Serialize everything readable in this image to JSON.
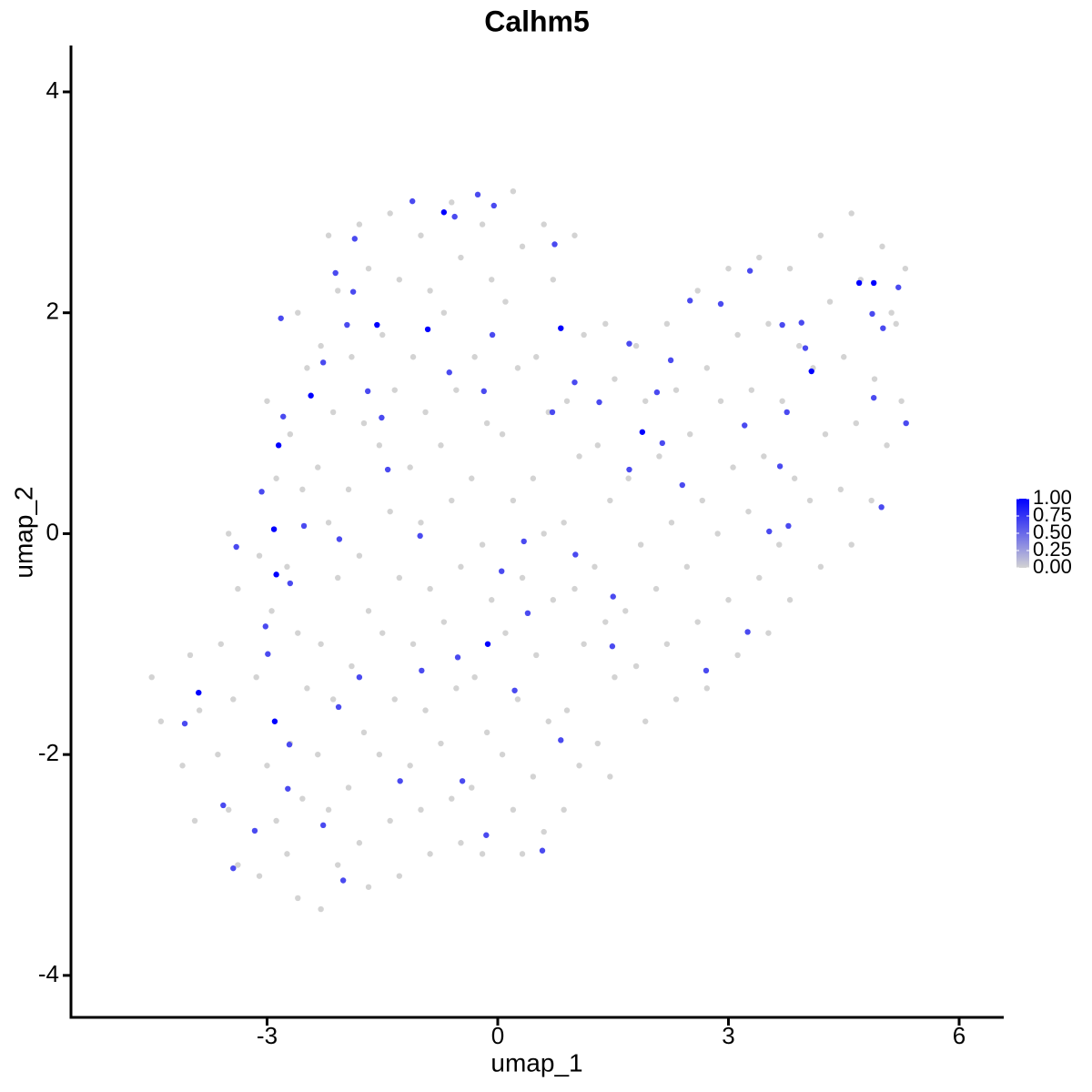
{
  "chart_data": {
    "type": "scatter",
    "title": "Calhm5",
    "x_label": "umap_1",
    "y_label": "umap_2",
    "xlim": [
      -5.55,
      6.58
    ],
    "ylim": [
      -4.38,
      4.42
    ],
    "xticks": [
      -3,
      0,
      3,
      6
    ],
    "yticks": [
      -4,
      -2,
      0,
      2,
      4
    ],
    "grid": false,
    "low_color": "#d3d3d3",
    "high_color": "#0000ff",
    "colorlim": [
      0,
      1
    ],
    "colorticks": [
      {
        "value": 0,
        "label": "0.00"
      },
      {
        "value": 0.25,
        "label": "0.25"
      },
      {
        "value": 0.5,
        "label": "0.50"
      },
      {
        "value": 0.75,
        "label": "0.75"
      },
      {
        "value": 1,
        "label": "1.00"
      }
    ],
    "legend_position": "right",
    "x": [
      -4.5,
      -4.38,
      -4.0,
      -3.88,
      -4.1,
      -3.94,
      -3.5,
      -3.38,
      -3.6,
      -3.44,
      -3.64,
      -3.5,
      -3.38,
      -3.0,
      -2.88,
      -3.1,
      -2.94,
      -3.14,
      -3.0,
      -2.88,
      -3.1,
      -2.6,
      -2.48,
      -2.7,
      -2.54,
      -2.74,
      -2.6,
      -2.48,
      -2.7,
      -2.54,
      -2.74,
      -2.6,
      -2.2,
      -2.08,
      -2.3,
      -2.14,
      -2.34,
      -2.2,
      -2.08,
      -2.3,
      -2.14,
      -2.34,
      -2.2,
      -2.08,
      -2.3,
      -1.8,
      -1.68,
      -1.9,
      -1.74,
      -1.94,
      -1.8,
      -1.68,
      -1.9,
      -1.74,
      -1.94,
      -1.8,
      -1.68,
      -1.4,
      -1.28,
      -1.5,
      -1.34,
      -1.54,
      -1.4,
      -1.28,
      -1.5,
      -1.34,
      -1.54,
      -1.4,
      -1.28,
      -1.0,
      -0.88,
      -1.1,
      -0.94,
      -1.14,
      -1.0,
      -0.88,
      -1.1,
      -0.94,
      -1.14,
      -1.0,
      -0.88,
      -0.6,
      -0.48,
      -0.7,
      -0.54,
      -0.74,
      -0.6,
      -0.48,
      -0.7,
      -0.54,
      -0.74,
      -0.6,
      -0.48,
      -0.2,
      -0.08,
      -0.3,
      -0.14,
      -0.34,
      -0.2,
      -0.08,
      -0.3,
      -0.14,
      -0.34,
      -0.2,
      0.2,
      0.32,
      0.1,
      0.26,
      0.06,
      0.2,
      0.32,
      0.1,
      0.26,
      0.06,
      0.2,
      0.32,
      0.6,
      0.72,
      0.5,
      0.66,
      0.46,
      0.6,
      0.72,
      0.5,
      0.66,
      0.46,
      0.6,
      1.0,
      1.12,
      0.9,
      1.06,
      0.86,
      1.0,
      1.12,
      0.9,
      1.06,
      0.86,
      1.4,
      1.52,
      1.3,
      1.46,
      1.26,
      1.4,
      1.52,
      1.3,
      1.46,
      1.8,
      1.92,
      1.7,
      1.86,
      1.66,
      1.8,
      1.92,
      2.2,
      2.32,
      2.1,
      2.26,
      2.06,
      2.2,
      2.32,
      2.6,
      2.72,
      2.5,
      2.66,
      2.46,
      2.6,
      2.72,
      3.0,
      3.12,
      2.9,
      3.06,
      2.86,
      3.0,
      3.12,
      3.4,
      3.52,
      3.3,
      3.46,
      3.26,
      3.4,
      3.52,
      3.8,
      3.92,
      3.7,
      3.86,
      3.66,
      3.8,
      4.2,
      4.32,
      4.1,
      4.26,
      4.06,
      4.2,
      4.6,
      4.72,
      4.5,
      4.66,
      4.46,
      4.6,
      5.0,
      5.12,
      4.9,
      5.06,
      4.86,
      5.3,
      5.18,
      5.25,
      -1.11,
      -0.26,
      -1.86,
      -2.11,
      -1.88,
      -2.82,
      -1.96,
      -2.27,
      -1.69,
      -1.51,
      -2.79,
      -3.07,
      -2.52,
      -2.06,
      -3.4,
      -2.7,
      -3.02,
      -2.99,
      -1.8,
      -2.07,
      -2.71,
      -4.07,
      -3.57,
      -3.44,
      -2.01,
      -2.27,
      -2.73,
      -3.16,
      -1.27,
      -0.46,
      -0.15,
      0.58,
      0.82,
      0.22,
      -0.52,
      0.39,
      0.05,
      0.34,
      1.01,
      1.5,
      1.49,
      -0.99,
      -1.01,
      -1.43,
      -0.07,
      -0.18,
      -0.63,
      1.0,
      1.32,
      0.71,
      1.71,
      2.14,
      2.4,
      2.07,
      2.25,
      1.71,
      2.5,
      2.9,
      3.28,
      3.76,
      3.21,
      3.67,
      3.78,
      3.53,
      3.25,
      2.71,
      4.0,
      3.7,
      3.95,
      4.89,
      4.99,
      5.31,
      5.01,
      4.87,
      5.21,
      0.74,
      -0.56,
      -0.05,
      -0.7,
      -1.57,
      -0.91,
      0.82,
      -2.43,
      -2.85,
      -2.91,
      -2.88,
      -0.13,
      1.88,
      4.08,
      4.7,
      4.89,
      -3.89,
      -2.9
    ],
    "y": [
      -1.3,
      -1.7,
      -1.1,
      -1.6,
      -2.1,
      -2.6,
      0.0,
      -0.5,
      -1.0,
      -1.5,
      -2.0,
      -2.5,
      -3.0,
      1.2,
      0.5,
      -0.2,
      -0.7,
      -1.3,
      -2.1,
      -2.6,
      -3.1,
      2.0,
      1.5,
      0.9,
      0.4,
      -0.3,
      -0.9,
      -1.4,
      -1.9,
      -2.4,
      -2.9,
      -3.3,
      2.7,
      2.2,
      1.7,
      1.1,
      0.6,
      0.1,
      -0.4,
      -1.0,
      -1.5,
      -2.0,
      -2.5,
      -3.0,
      -3.4,
      2.8,
      2.4,
      1.6,
      1.0,
      0.4,
      -0.2,
      -0.7,
      -1.2,
      -1.8,
      -2.3,
      -2.8,
      -3.2,
      2.9,
      2.3,
      1.8,
      1.3,
      0.8,
      0.2,
      -0.4,
      -0.9,
      -1.5,
      -2.0,
      -2.6,
      -3.1,
      2.7,
      2.2,
      1.6,
      1.1,
      0.6,
      0.1,
      -0.5,
      -1.0,
      -1.6,
      -2.1,
      -2.5,
      -2.9,
      3.0,
      2.5,
      2.0,
      1.3,
      0.8,
      0.3,
      -0.3,
      -0.8,
      -1.4,
      -1.9,
      -2.4,
      -2.8,
      2.8,
      2.3,
      1.6,
      1.0,
      0.5,
      -0.1,
      -0.6,
      -1.3,
      -1.8,
      -2.3,
      -2.9,
      3.1,
      2.6,
      2.1,
      1.5,
      0.9,
      0.3,
      -0.4,
      -0.9,
      -1.5,
      -2.0,
      -2.5,
      -2.9,
      2.8,
      2.3,
      1.6,
      1.1,
      0.5,
      0.0,
      -0.6,
      -1.1,
      -1.7,
      -2.2,
      -2.7,
      2.7,
      1.8,
      1.2,
      0.7,
      0.1,
      -0.5,
      -1.0,
      -1.6,
      -2.1,
      -2.5,
      1.9,
      1.4,
      0.8,
      0.3,
      -0.3,
      -0.8,
      -1.3,
      -1.9,
      -2.2,
      1.7,
      1.2,
      0.5,
      -0.1,
      -0.7,
      -1.2,
      -1.7,
      1.9,
      1.3,
      0.7,
      0.1,
      -0.5,
      -1.0,
      -1.5,
      2.2,
      1.5,
      0.9,
      0.3,
      -0.3,
      -0.8,
      -1.4,
      2.4,
      1.8,
      1.2,
      0.6,
      0.0,
      -0.6,
      -1.1,
      2.5,
      1.9,
      1.3,
      0.7,
      0.2,
      -0.4,
      -0.9,
      2.4,
      1.7,
      1.2,
      0.5,
      -0.1,
      -0.6,
      2.7,
      2.1,
      1.5,
      0.9,
      0.3,
      -0.3,
      2.9,
      2.3,
      1.6,
      1.0,
      0.4,
      -0.1,
      2.6,
      2.0,
      1.4,
      0.8,
      0.3,
      2.4,
      1.9,
      1.2,
      3.01,
      3.07,
      2.67,
      2.36,
      2.19,
      1.95,
      1.89,
      1.55,
      1.29,
      1.05,
      1.06,
      0.38,
      0.07,
      -0.05,
      -0.12,
      -0.45,
      -0.84,
      -1.09,
      -1.3,
      -1.57,
      -1.91,
      -1.72,
      -2.46,
      -3.03,
      -3.14,
      -2.64,
      -2.31,
      -2.69,
      -2.24,
      -2.24,
      -2.73,
      -2.87,
      -1.87,
      -1.42,
      -1.12,
      -0.72,
      -0.34,
      -0.07,
      -0.19,
      -0.57,
      -1.02,
      -1.24,
      -0.02,
      0.58,
      1.8,
      1.29,
      1.46,
      1.37,
      1.19,
      1.1,
      0.58,
      0.82,
      0.44,
      1.28,
      1.57,
      1.72,
      2.11,
      2.08,
      2.38,
      1.1,
      0.98,
      0.61,
      0.07,
      0.02,
      -0.89,
      -1.24,
      1.68,
      1.89,
      1.91,
      1.23,
      0.24,
      1.0,
      1.86,
      1.99,
      2.23,
      2.62,
      2.87,
      2.97,
      2.91,
      1.89,
      1.85,
      1.86,
      1.25,
      0.8,
      0.04,
      -0.37,
      -1.0,
      0.92,
      1.47,
      2.27,
      2.27,
      -1.44,
      -1.7
    ],
    "values": [
      0,
      0,
      0,
      0,
      0,
      0,
      0,
      0,
      0,
      0,
      0,
      0,
      0,
      0,
      0,
      0,
      0,
      0,
      0,
      0,
      0,
      0,
      0,
      0,
      0,
      0,
      0,
      0,
      0,
      0,
      0,
      0,
      0,
      0,
      0,
      0,
      0,
      0,
      0,
      0,
      0,
      0,
      0,
      0,
      0,
      0,
      0,
      0,
      0,
      0,
      0,
      0,
      0,
      0,
      0,
      0,
      0,
      0,
      0,
      0,
      0,
      0,
      0,
      0,
      0,
      0,
      0,
      0,
      0,
      0,
      0,
      0,
      0,
      0,
      0,
      0,
      0,
      0,
      0,
      0,
      0,
      0,
      0,
      0,
      0,
      0,
      0,
      0,
      0,
      0,
      0,
      0,
      0,
      0,
      0,
      0,
      0,
      0,
      0,
      0,
      0,
      0,
      0,
      0,
      0,
      0,
      0,
      0,
      0,
      0,
      0,
      0,
      0,
      0,
      0,
      0,
      0,
      0,
      0,
      0,
      0,
      0,
      0,
      0,
      0,
      0,
      0,
      0,
      0,
      0,
      0,
      0,
      0,
      0,
      0,
      0,
      0,
      0,
      0,
      0,
      0,
      0,
      0,
      0,
      0,
      0,
      0,
      0,
      0,
      0,
      0,
      0,
      0,
      0,
      0,
      0,
      0,
      0,
      0,
      0,
      0,
      0,
      0,
      0,
      0,
      0,
      0,
      0,
      0,
      0,
      0,
      0,
      0,
      0,
      0,
      0,
      0,
      0,
      0,
      0,
      0,
      0,
      0,
      0,
      0,
      0,
      0,
      0,
      0,
      0,
      0,
      0,
      0,
      0,
      0,
      0,
      0,
      0,
      0,
      0,
      0,
      0,
      0,
      0,
      0,
      0,
      0,
      0.65,
      0.65,
      0.65,
      0.65,
      0.65,
      0.65,
      0.65,
      0.65,
      0.65,
      0.65,
      0.65,
      0.65,
      0.65,
      0.65,
      0.65,
      0.65,
      0.65,
      0.65,
      0.65,
      0.65,
      0.65,
      0.65,
      0.65,
      0.65,
      0.65,
      0.65,
      0.65,
      0.65,
      0.65,
      0.65,
      0.65,
      0.65,
      0.65,
      0.65,
      0.65,
      0.65,
      0.65,
      0.65,
      0.65,
      0.65,
      0.65,
      0.65,
      0.65,
      0.65,
      0.65,
      0.65,
      0.65,
      0.65,
      0.65,
      0.65,
      0.65,
      0.65,
      0.65,
      0.65,
      0.65,
      0.65,
      0.65,
      0.65,
      0.65,
      0.65,
      0.65,
      0.65,
      0.65,
      0.65,
      0.65,
      0.65,
      0.65,
      0.65,
      0.65,
      0.65,
      0.65,
      0.65,
      0.65,
      0.65,
      0.65,
      0.65,
      0.65,
      0.65,
      1,
      1,
      1,
      1,
      1,
      1,
      1,
      1,
      1,
      1,
      1,
      1,
      1,
      1,
      1
    ]
  }
}
